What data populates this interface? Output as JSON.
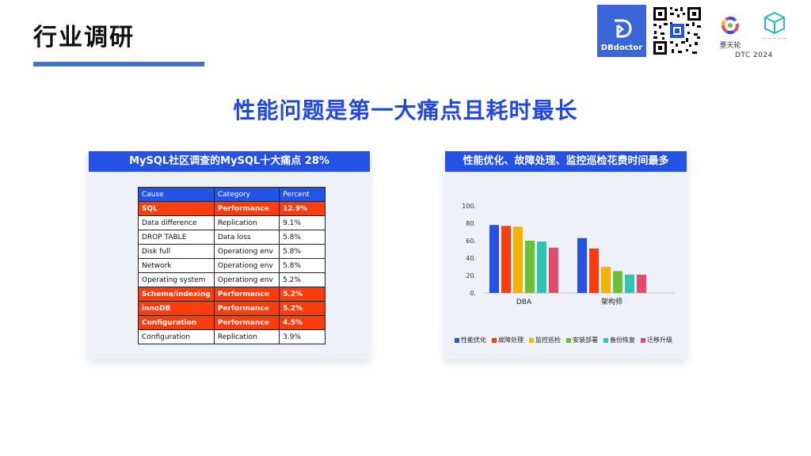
{
  "page": {
    "title": "行业调研",
    "headline": "性能问题是第一大痛点且耗时最长"
  },
  "logos": {
    "brand": "DBdoctor",
    "partner": "墨天轮",
    "conference": "DTC 2024"
  },
  "left_card": {
    "title": "MySQL社区调查的MySQL十大痛点 28%",
    "columns": [
      "Cause",
      "Category",
      "Percent"
    ],
    "rows": [
      {
        "cause": "SQL",
        "category": "Performance",
        "percent": "12.9%",
        "highlight": true
      },
      {
        "cause": "Data difference",
        "category": "Replication",
        "percent": "9.1%",
        "highlight": false
      },
      {
        "cause": "DROP TABLE",
        "category": "Data loss",
        "percent": "5.8%",
        "highlight": false
      },
      {
        "cause": "Disk full",
        "category": "Operationg env",
        "percent": "5.8%",
        "highlight": false
      },
      {
        "cause": "Network",
        "category": "Operationg env",
        "percent": "5.8%",
        "highlight": false
      },
      {
        "cause": "Operating system",
        "category": "Operationg env",
        "percent": "5.2%",
        "highlight": false
      },
      {
        "cause": "Schema/indexing",
        "category": "Performance",
        "percent": "5.2%",
        "highlight": true
      },
      {
        "cause": "innoDB",
        "category": "Performance",
        "percent": "5.2%",
        "highlight": true
      },
      {
        "cause": "Configuration",
        "category": "Performance",
        "percent": "4.5%",
        "highlight": true
      },
      {
        "cause": "Configuration",
        "category": "Replication",
        "percent": "3.9%",
        "highlight": false
      }
    ]
  },
  "right_card": {
    "title": "性能优化、故障处理、监控巡检花费时间最多"
  },
  "chart_data": {
    "type": "bar",
    "categories": [
      "DBA",
      "架构师"
    ],
    "series": [
      {
        "name": "性能优化",
        "color": "#2552e6",
        "values": [
          78,
          63
        ]
      },
      {
        "name": "故障处理",
        "color": "#fb3c0b",
        "values": [
          77,
          51
        ]
      },
      {
        "name": "监控巡检",
        "color": "#f4b400",
        "values": [
          76,
          30
        ]
      },
      {
        "name": "安装部署",
        "color": "#6bbf3b",
        "values": [
          60,
          25
        ]
      },
      {
        "name": "备份恢复",
        "color": "#2ec4b6",
        "values": [
          59,
          21
        ]
      },
      {
        "name": "迁移升级",
        "color": "#e64a6b",
        "values": [
          52,
          21
        ]
      }
    ],
    "yticks": [
      "100.",
      "80.",
      "60.",
      "40.",
      "20.",
      "0."
    ],
    "ylim": [
      0,
      100
    ],
    "legend_position": "bottom",
    "grid": false
  }
}
